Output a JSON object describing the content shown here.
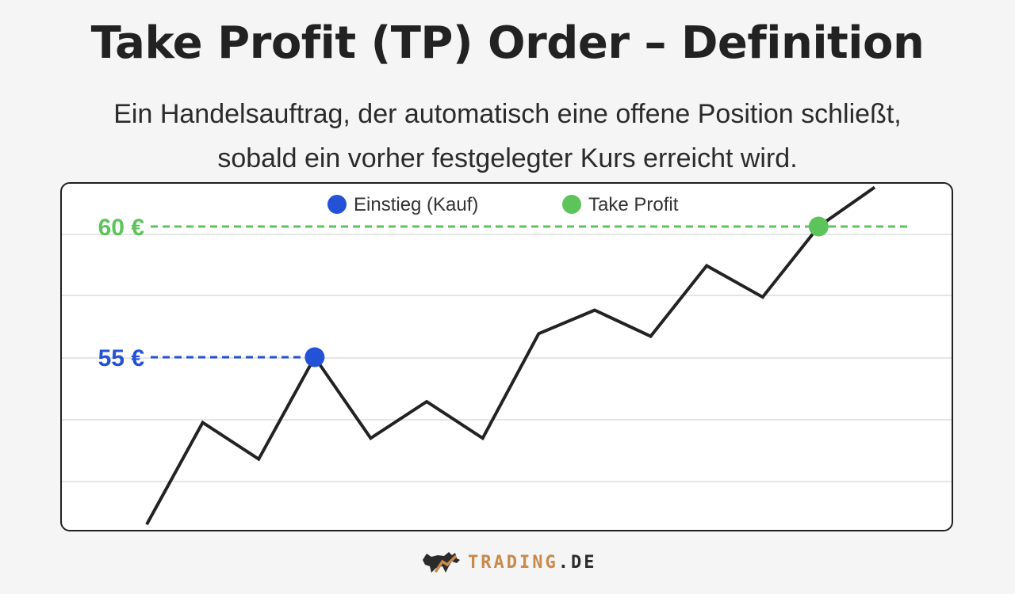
{
  "title": "Take Profit (TP) Order – Definition",
  "subtitle": "Ein Handelsauftrag, der automatisch eine offene Position schließt, sobald ein vorher festgelegter Kurs erreicht wird.",
  "logo": {
    "main": "TRADING",
    "suffix": ".DE"
  },
  "colors": {
    "entry": "#2452d6",
    "take_profit": "#5cc45b",
    "line": "#222222",
    "grid": "#e5e5e5",
    "logo_accent": "#c9894b"
  },
  "chart_data": {
    "type": "line",
    "title": "",
    "xlabel": "",
    "ylabel": "",
    "ylim": [
      48,
      62
    ],
    "grid": true,
    "legend": {
      "placement": "top-center",
      "entries": [
        {
          "label": "Einstieg (Kauf)",
          "color": "#2452d6"
        },
        {
          "label": "Take Profit",
          "color": "#5cc45b"
        }
      ]
    },
    "series": [
      {
        "values": [
          48.6,
          52.5,
          51.1,
          55.0,
          51.9,
          53.3,
          51.9,
          55.9,
          56.8,
          55.8,
          58.5,
          57.3,
          60.0,
          61.5
        ]
      }
    ],
    "levels": [
      {
        "label": "60 €",
        "value": 60,
        "color": "#5cc45b"
      },
      {
        "label": "55 €",
        "value": 55,
        "color": "#2452d6"
      }
    ],
    "markers": [
      {
        "name": "entry",
        "index": 3,
        "value": 55,
        "color": "#2452d6"
      },
      {
        "name": "take-profit",
        "index": 12,
        "value": 60,
        "color": "#5cc45b"
      }
    ]
  }
}
